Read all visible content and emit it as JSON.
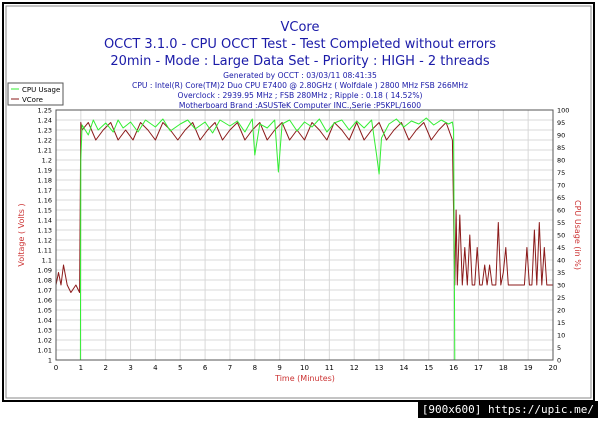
{
  "header": {
    "title": "VCore",
    "subtitle1": "OCCT 3.1.0 - CPU OCCT Test - Test Completed without errors",
    "subtitle2": "20min - Mode : Large Data Set - Priority : HIGH - 2 threads",
    "info": [
      "Generated by OCCT : 03/03/11 08:41:35",
      "CPU : Intel(R) Core(TM)2 Duo CPU E7400 @ 2.80GHz ( Wolfdale ) 2800 MHz FSB 266MHz",
      "Overclock : 2939.95 MHz ; FSB 280MHz ; Ripple : 0.18 ( 14.52%)",
      "Motherboard Brand :ASUSTeK Computer INC.,Serie :P5KPL/1600"
    ]
  },
  "watermark": "[900x600] https://upic.me/",
  "colors": {
    "vcore": "#8b1a1a",
    "cpu_usage": "#33ee33",
    "title_blue": "#1a1aa8",
    "axis_red": "#cc3333",
    "grid": "#d8d8d8"
  },
  "chart_data": {
    "type": "line",
    "xlabel": "Time (Minutes)",
    "ylabel_left": "Voltage ( Volts )",
    "ylabel_right": "CPU Usage (in %)",
    "xlim": [
      0,
      20
    ],
    "ylim_left": [
      1.0,
      1.25
    ],
    "ylim_right": [
      0,
      100
    ],
    "x_ticks": [
      "0",
      "1",
      "2",
      "3",
      "4",
      "5",
      "6",
      "7",
      "8",
      "9",
      "10",
      "11",
      "12",
      "13",
      "14",
      "15",
      "16",
      "17",
      "18",
      "19",
      "20"
    ],
    "y_ticks_left": [
      "1",
      "1.01",
      "1.02",
      "1.03",
      "1.04",
      "1.05",
      "1.06",
      "1.07",
      "1.08",
      "1.09",
      "1.1",
      "1.11",
      "1.12",
      "1.13",
      "1.14",
      "1.15",
      "1.16",
      "1.17",
      "1.18",
      "1.19",
      "1.2",
      "1.21",
      "1.22",
      "1.23",
      "1.24",
      "1.25"
    ],
    "y_ticks_right": [
      "0",
      "5",
      "10",
      "15",
      "20",
      "25",
      "30",
      "35",
      "40",
      "45",
      "50",
      "55",
      "60",
      "65",
      "70",
      "75",
      "80",
      "85",
      "90",
      "95",
      "100"
    ],
    "grid": true,
    "legend_position": "top-left",
    "series": [
      {
        "name": "CPU Usage",
        "axis": "left",
        "x": [
          0,
          0.98,
          1.0,
          1.05,
          1.3,
          1.5,
          1.7,
          2.0,
          2.3,
          2.5,
          2.7,
          3.0,
          3.3,
          3.6,
          4.0,
          4.3,
          4.6,
          5.0,
          5.3,
          5.6,
          6.0,
          6.3,
          6.6,
          7.0,
          7.3,
          7.6,
          7.9,
          8.0,
          8.2,
          8.5,
          8.8,
          8.95,
          9.1,
          9.4,
          9.7,
          10.0,
          10.3,
          10.6,
          10.9,
          11.2,
          11.5,
          11.8,
          12.1,
          12.4,
          12.7,
          12.9,
          13.0,
          13.1,
          13.4,
          13.7,
          14.0,
          14.3,
          14.6,
          14.9,
          15.2,
          15.5,
          15.8,
          15.95,
          16.0,
          16.05,
          20
        ],
        "y": [
          1.0,
          1.0,
          1.2,
          1.235,
          1.225,
          1.24,
          1.23,
          1.237,
          1.228,
          1.24,
          1.232,
          1.238,
          1.228,
          1.24,
          1.233,
          1.241,
          1.229,
          1.236,
          1.24,
          1.231,
          1.238,
          1.227,
          1.24,
          1.234,
          1.239,
          1.228,
          1.241,
          1.205,
          1.236,
          1.232,
          1.24,
          1.188,
          1.236,
          1.24,
          1.229,
          1.238,
          1.233,
          1.241,
          1.228,
          1.237,
          1.24,
          1.23,
          1.239,
          1.232,
          1.24,
          1.205,
          1.186,
          1.222,
          1.236,
          1.241,
          1.233,
          1.239,
          1.236,
          1.242,
          1.235,
          1.24,
          1.236,
          1.238,
          1.23,
          1.0,
          1.0
        ]
      },
      {
        "name": "VCore",
        "axis": "right",
        "x": [
          0,
          0.1,
          0.2,
          0.3,
          0.45,
          0.6,
          0.8,
          0.95,
          1.0,
          1.05,
          1.3,
          1.6,
          1.9,
          2.2,
          2.5,
          2.8,
          3.1,
          3.4,
          3.7,
          4.0,
          4.3,
          4.6,
          4.9,
          5.2,
          5.5,
          5.8,
          6.1,
          6.4,
          6.7,
          7.0,
          7.3,
          7.6,
          7.9,
          8.2,
          8.5,
          8.8,
          9.1,
          9.4,
          9.7,
          10.0,
          10.3,
          10.6,
          10.9,
          11.2,
          11.5,
          11.8,
          12.1,
          12.4,
          12.7,
          13.0,
          13.3,
          13.6,
          13.9,
          14.2,
          14.5,
          14.8,
          15.1,
          15.4,
          15.7,
          15.95,
          16.05,
          16.1,
          16.15,
          16.25,
          16.35,
          16.45,
          16.55,
          16.65,
          16.75,
          16.85,
          16.95,
          17.05,
          17.15,
          17.25,
          17.35,
          17.45,
          17.55,
          17.7,
          17.8,
          17.9,
          18.0,
          18.1,
          18.2,
          18.3,
          18.45,
          18.6,
          18.75,
          18.85,
          18.95,
          19.05,
          19.15,
          19.25,
          19.35,
          19.45,
          19.55,
          19.65,
          19.75,
          19.85,
          20
        ],
        "y": [
          30,
          35,
          30,
          38,
          30,
          27,
          30,
          27,
          95,
          92,
          95,
          88,
          92,
          95,
          88,
          92,
          88,
          95,
          92,
          88,
          95,
          92,
          88,
          92,
          95,
          88,
          92,
          95,
          88,
          92,
          95,
          88,
          92,
          95,
          88,
          92,
          95,
          88,
          92,
          88,
          95,
          92,
          88,
          95,
          92,
          88,
          95,
          88,
          92,
          95,
          88,
          92,
          95,
          88,
          92,
          95,
          88,
          92,
          95,
          88,
          30,
          60,
          30,
          58,
          30,
          45,
          30,
          50,
          30,
          30,
          45,
          30,
          30,
          38,
          30,
          38,
          30,
          30,
          55,
          30,
          35,
          45,
          30,
          30,
          30,
          30,
          30,
          30,
          45,
          30,
          30,
          52,
          30,
          55,
          30,
          45,
          30,
          30,
          30
        ]
      }
    ]
  }
}
